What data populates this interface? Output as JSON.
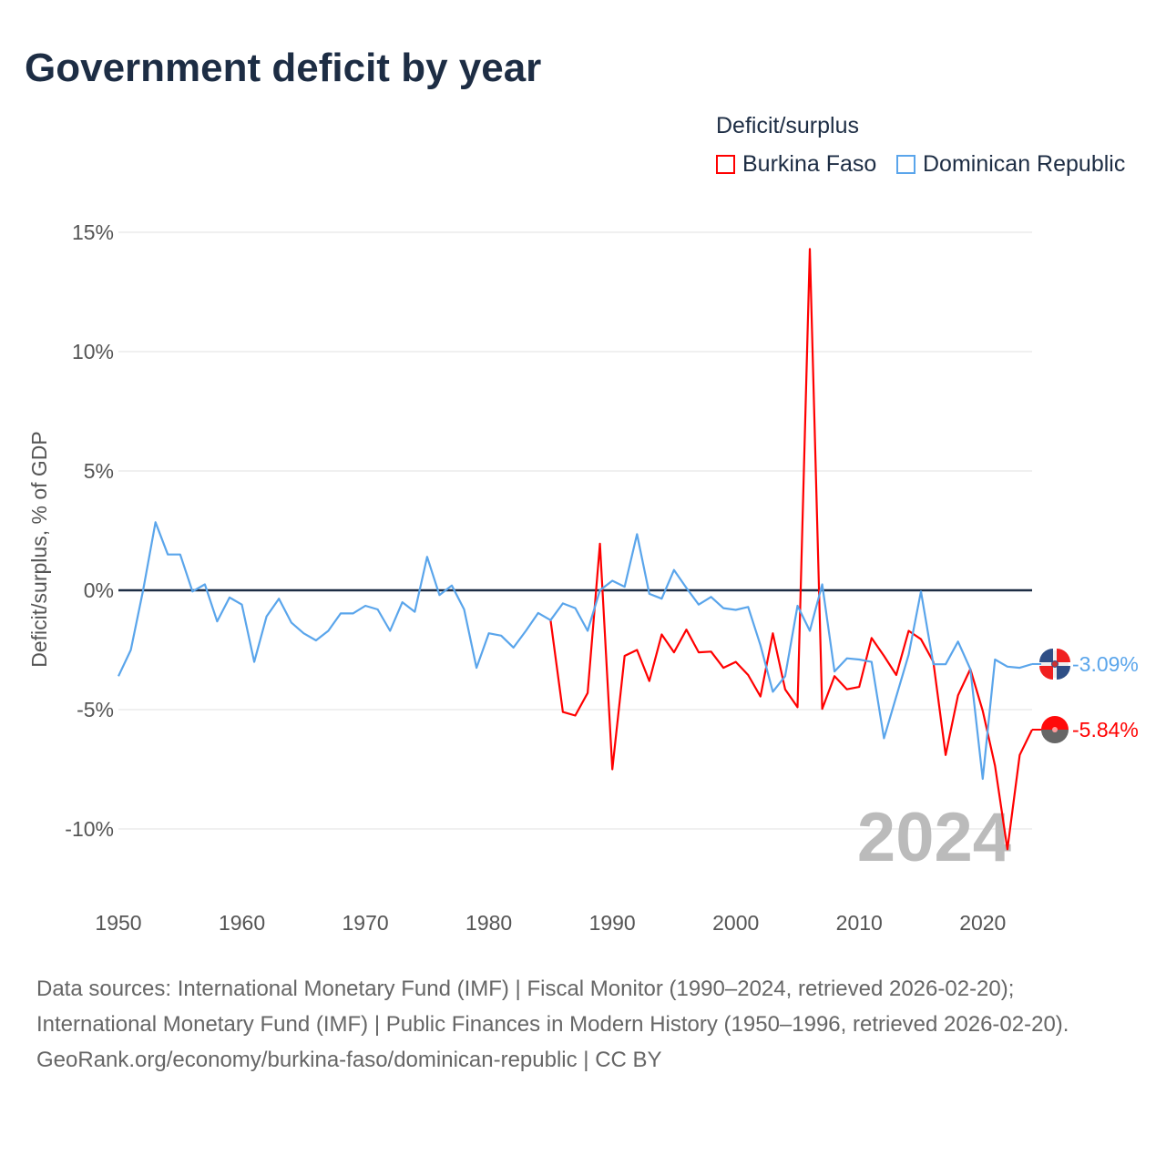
{
  "title": "Government deficit by year",
  "legend": {
    "title": "Deficit/surplus",
    "items": [
      {
        "label": "Burkina Faso",
        "color": "#ff0000"
      },
      {
        "label": "Dominican Republic",
        "color": "#5aa5eb"
      }
    ]
  },
  "watermark_year": "2024",
  "chart_data": {
    "type": "line",
    "title": "Government deficit by year",
    "xlabel": "",
    "ylabel": "Deficit/surplus, % of GDP",
    "xlim": [
      1950,
      2024
    ],
    "ylim": [
      -12.5,
      15
    ],
    "x_ticks": [
      1950,
      1960,
      1970,
      1980,
      1990,
      2000,
      2010,
      2020
    ],
    "x_tick_labels": [
      "1950",
      "1960",
      "1970",
      "1980",
      "1990",
      "2000",
      "2010",
      "2020"
    ],
    "y_ticks": [
      15,
      10,
      5,
      0,
      -5,
      -10
    ],
    "y_tick_labels": [
      "15%",
      "10%",
      "5%",
      "0%",
      "-5%",
      "-10%"
    ],
    "grid": true,
    "legend_position": "top-right",
    "series": [
      {
        "name": "Burkina Faso",
        "color": "#ff0000",
        "end_label": "-5.84%",
        "start_year": 1985,
        "values": [
          -1.25,
          -5.1,
          -5.25,
          -4.3,
          1.95,
          -7.5,
          -2.75,
          -2.5,
          -3.8,
          -1.85,
          -2.6,
          -1.65,
          -2.6,
          -2.57,
          -3.25,
          -3.0,
          -3.55,
          -4.45,
          -1.8,
          -4.15,
          -4.9,
          14.3,
          -4.97,
          -3.6,
          -4.15,
          -4.05,
          -2.0,
          -2.75,
          -3.55,
          -1.7,
          -2.05,
          -3.0,
          -6.9,
          -4.4,
          -3.3,
          -5.05,
          -7.35,
          -10.85,
          -6.9,
          -5.84
        ]
      },
      {
        "name": "Dominican Republic",
        "color": "#5aa5eb",
        "end_label": "-3.09%",
        "start_year": 1950,
        "values": [
          -3.6,
          -2.5,
          0.0,
          2.85,
          1.5,
          1.5,
          -0.05,
          0.25,
          -1.3,
          -0.3,
          -0.6,
          -3.0,
          -1.1,
          -0.35,
          -1.35,
          -1.8,
          -2.1,
          -1.7,
          -0.97,
          -0.97,
          -0.65,
          -0.8,
          -1.7,
          -0.5,
          -0.9,
          1.4,
          -0.2,
          0.2,
          -0.8,
          -3.25,
          -1.8,
          -1.9,
          -2.4,
          -1.7,
          -0.95,
          -1.25,
          -0.55,
          -0.75,
          -1.7,
          0.0,
          0.4,
          0.15,
          2.35,
          -0.15,
          -0.35,
          0.85,
          0.1,
          -0.6,
          -0.28,
          -0.75,
          -0.82,
          -0.7,
          -2.3,
          -4.25,
          -3.6,
          -0.65,
          -1.7,
          0.25,
          -3.4,
          -2.85,
          -2.9,
          -3.0,
          -6.2,
          -4.45,
          -2.7,
          -0.05,
          -3.1,
          -3.1,
          -2.15,
          -3.3,
          -7.9,
          -2.9,
          -3.2,
          -3.25,
          -3.09
        ]
      }
    ]
  },
  "footer": {
    "sources": "Data sources: International Monetary Fund (IMF) | Fiscal Monitor (1990–2024, retrieved 2026-02-20); International Monetary Fund (IMF) | Public Finances in Modern History (1950–1996, retrieved 2026-02-20).",
    "link": "GeoRank.org/economy/burkina-faso/dominican-republic | CC BY"
  }
}
